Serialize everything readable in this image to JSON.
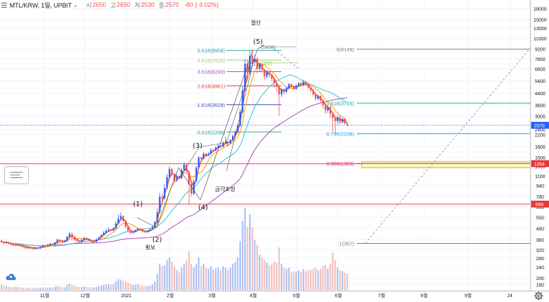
{
  "header": {
    "symbol": "MTL/KRW, 1일, UPBIT",
    "open_label": "시",
    "open": "2650",
    "high_label": "고",
    "high": "2650",
    "low_label": "저",
    "low": "2530",
    "close_label": "종",
    "close": "2570",
    "change": "-80 (-3.02%)"
  },
  "icons": {
    "menu": "menu-icon",
    "settings": "gear-icon",
    "tool": "cloud-icon"
  },
  "colors": {
    "up": "#2962ff",
    "down": "#ef5350",
    "fib_56": "#26a69a",
    "fib_46": "#9ccc65",
    "fib_36": "#ab47bc",
    "fib_26": "#e53935",
    "fib_16": "#3f51b5",
    "fib_06": "#26a69a",
    "red_line": "#e53935",
    "price_tag": "#2962ff"
  },
  "chart_data": {
    "type": "candlestick",
    "y_scale": "log",
    "ylim": [
      165,
      19000
    ],
    "x_tick_labels": [
      "11월",
      "12월",
      "2021",
      "2월",
      "3월",
      "4월",
      "5월",
      "6월",
      "7월",
      "8월",
      "9월",
      "24"
    ],
    "y_tick_labels": [
      18000,
      15000,
      13000,
      11000,
      9200,
      7800,
      6600,
      5400,
      4400,
      3600,
      3000,
      2400,
      2200,
      1800,
      1500,
      1300,
      1100,
      940,
      780,
      660,
      550,
      460,
      380,
      320,
      280,
      240,
      200,
      180
    ],
    "last_price": 2570,
    "horizontal_levels": [
      {
        "price": 1354,
        "label": "1354"
      },
      {
        "price": 689,
        "label": "689"
      }
    ],
    "fib_extension": [
      {
        "ratio": "5.618",
        "price": 8958
      },
      {
        "ratio": "4.618",
        "price": 7626
      },
      {
        "ratio": "3.618",
        "price": 6293
      },
      {
        "ratio": "2.618",
        "price": 4961
      },
      {
        "ratio": "1.618",
        "price": 3628
      },
      {
        "ratio": "0.618",
        "price": 2296
      }
    ],
    "fib_retracement": [
      {
        "ratio": "0",
        "price": 9149
      },
      {
        "ratio": "0.618",
        "price": 3716
      },
      {
        "ratio": "0.786",
        "price": 2238
      },
      {
        "ratio": "0.886",
        "price": 1359
      },
      {
        "ratio": "1",
        "price": 357
      }
    ],
    "top_label": "(5958)",
    "yellow_label": "(7282)",
    "annotations": [
      {
        "text": "절단"
      },
      {
        "text": "(5)"
      },
      {
        "text": "(3)"
      },
      {
        "text": "(1)"
      },
      {
        "text": "(2)"
      },
      {
        "text": "(4)"
      },
      {
        "text": "횡보"
      },
      {
        "text": "급각조정"
      }
    ],
    "candles": [
      [
        375,
        368,
        380,
        360,
        100
      ],
      [
        367,
        360,
        372,
        350,
        80
      ],
      [
        360,
        365,
        371,
        355,
        70
      ],
      [
        365,
        355,
        368,
        350,
        60
      ],
      [
        355,
        350,
        360,
        343,
        55
      ],
      [
        350,
        346,
        356,
        340,
        50
      ],
      [
        346,
        352,
        357,
        341,
        60
      ],
      [
        352,
        345,
        356,
        338,
        50
      ],
      [
        345,
        340,
        349,
        334,
        45
      ],
      [
        340,
        338,
        345,
        332,
        40
      ],
      [
        338,
        330,
        342,
        324,
        45
      ],
      [
        330,
        334,
        340,
        326,
        38
      ],
      [
        334,
        331,
        339,
        325,
        35
      ],
      [
        331,
        326,
        335,
        320,
        40
      ],
      [
        326,
        333,
        338,
        322,
        38
      ],
      [
        333,
        329,
        337,
        324,
        36
      ],
      [
        329,
        337,
        342,
        326,
        40
      ],
      [
        337,
        346,
        352,
        333,
        45
      ],
      [
        346,
        341,
        351,
        336,
        40
      ],
      [
        341,
        349,
        354,
        338,
        45
      ],
      [
        349,
        355,
        362,
        345,
        50
      ],
      [
        355,
        350,
        360,
        344,
        45
      ],
      [
        350,
        362,
        368,
        348,
        55
      ],
      [
        362,
        380,
        388,
        358,
        70
      ],
      [
        380,
        372,
        386,
        366,
        60
      ],
      [
        372,
        366,
        376,
        360,
        50
      ],
      [
        366,
        374,
        380,
        362,
        50
      ],
      [
        374,
        398,
        408,
        370,
        90
      ],
      [
        398,
        420,
        432,
        392,
        110
      ],
      [
        420,
        395,
        428,
        388,
        90
      ],
      [
        395,
        380,
        400,
        372,
        70
      ],
      [
        380,
        372,
        384,
        366,
        60
      ],
      [
        372,
        366,
        375,
        360,
        50
      ],
      [
        366,
        378,
        384,
        362,
        55
      ],
      [
        378,
        392,
        398,
        374,
        60
      ],
      [
        392,
        385,
        396,
        378,
        55
      ],
      [
        385,
        374,
        388,
        368,
        50
      ],
      [
        374,
        365,
        378,
        358,
        50
      ],
      [
        365,
        368,
        374,
        360,
        45
      ],
      [
        368,
        382,
        388,
        364,
        55
      ],
      [
        382,
        395,
        402,
        378,
        65
      ],
      [
        395,
        410,
        420,
        390,
        75
      ],
      [
        410,
        428,
        440,
        405,
        85
      ],
      [
        428,
        440,
        455,
        420,
        95
      ],
      [
        440,
        450,
        470,
        432,
        100
      ],
      [
        450,
        445,
        458,
        436,
        90
      ],
      [
        445,
        460,
        472,
        440,
        100
      ],
      [
        460,
        498,
        520,
        452,
        140
      ],
      [
        498,
        540,
        580,
        490,
        180
      ],
      [
        540,
        565,
        600,
        528,
        170
      ],
      [
        565,
        520,
        575,
        508,
        150
      ],
      [
        520,
        470,
        528,
        460,
        140
      ],
      [
        470,
        440,
        478,
        432,
        120
      ],
      [
        440,
        425,
        446,
        416,
        100
      ],
      [
        425,
        432,
        440,
        420,
        85
      ],
      [
        432,
        446,
        452,
        428,
        90
      ],
      [
        446,
        458,
        466,
        440,
        95
      ],
      [
        458,
        448,
        462,
        440,
        85
      ],
      [
        448,
        436,
        452,
        430,
        75
      ],
      [
        436,
        430,
        440,
        423,
        70
      ],
      [
        430,
        440,
        446,
        426,
        70
      ],
      [
        440,
        452,
        458,
        436,
        75
      ],
      [
        452,
        470,
        480,
        448,
        90
      ],
      [
        470,
        510,
        525,
        462,
        140
      ],
      [
        510,
        600,
        640,
        500,
        260
      ],
      [
        600,
        780,
        830,
        590,
        420
      ],
      [
        780,
        760,
        820,
        700,
        380
      ],
      [
        760,
        900,
        960,
        740,
        400
      ],
      [
        900,
        1080,
        1140,
        880,
        480
      ],
      [
        1080,
        1240,
        1290,
        1050,
        520
      ],
      [
        1240,
        1140,
        1260,
        1100,
        450
      ],
      [
        1140,
        1020,
        1160,
        990,
        380
      ],
      [
        1020,
        1100,
        1130,
        1000,
        320
      ],
      [
        1100,
        1060,
        1120,
        1030,
        280
      ],
      [
        1060,
        1220,
        1260,
        1050,
        360
      ],
      [
        1220,
        1330,
        1380,
        1200,
        420
      ],
      [
        1330,
        1190,
        1350,
        1140,
        480
      ],
      [
        1190,
        960,
        1200,
        680,
        620
      ],
      [
        960,
        820,
        980,
        780,
        420
      ],
      [
        820,
        1010,
        1040,
        800,
        360
      ],
      [
        1010,
        1270,
        1300,
        1000,
        420
      ],
      [
        1270,
        1500,
        1540,
        1250,
        520
      ],
      [
        1500,
        1470,
        1520,
        1440,
        380
      ],
      [
        1470,
        1600,
        1650,
        1450,
        420
      ],
      [
        1600,
        1550,
        1620,
        1520,
        360
      ],
      [
        1550,
        1600,
        1640,
        1530,
        340
      ],
      [
        1600,
        1700,
        1760,
        1580,
        380
      ],
      [
        1700,
        1690,
        1740,
        1650,
        330
      ],
      [
        1690,
        1770,
        1820,
        1670,
        350
      ],
      [
        1770,
        1820,
        1880,
        1740,
        360
      ],
      [
        1820,
        1800,
        1860,
        1760,
        320
      ],
      [
        1800,
        1920,
        1980,
        1780,
        380
      ],
      [
        1920,
        1950,
        2000,
        1880,
        360
      ],
      [
        1950,
        1900,
        1970,
        1850,
        320
      ],
      [
        1900,
        2000,
        2050,
        1880,
        360
      ],
      [
        2000,
        2150,
        2200,
        1970,
        420
      ],
      [
        2150,
        2300,
        2380,
        2100,
        450
      ],
      [
        2300,
        2550,
        2650,
        2250,
        520
      ],
      [
        2550,
        3200,
        3400,
        2500,
        780
      ],
      [
        3200,
        4600,
        4900,
        3150,
        1100
      ],
      [
        4600,
        7200,
        7800,
        4500,
        1300
      ],
      [
        7200,
        6200,
        7700,
        5600,
        1000
      ],
      [
        6200,
        8200,
        8900,
        6000,
        1200
      ],
      [
        8200,
        7400,
        9150,
        7000,
        1000
      ],
      [
        7400,
        7800,
        8300,
        6900,
        800
      ],
      [
        7800,
        6600,
        8000,
        6100,
        720
      ],
      [
        6600,
        7100,
        7300,
        6300,
        560
      ],
      [
        7100,
        6500,
        7250,
        6200,
        520
      ],
      [
        6500,
        5800,
        6600,
        5500,
        480
      ],
      [
        5800,
        6300,
        6500,
        5600,
        440
      ],
      [
        6300,
        6000,
        6400,
        5700,
        400
      ],
      [
        6000,
        5600,
        6100,
        5300,
        420
      ],
      [
        5600,
        5200,
        5700,
        4800,
        460
      ],
      [
        5200,
        4900,
        5300,
        4500,
        440
      ],
      [
        4900,
        4300,
        5000,
        3000,
        680
      ],
      [
        4300,
        4700,
        4800,
        4100,
        420
      ],
      [
        4700,
        4500,
        4800,
        4300,
        360
      ],
      [
        4500,
        4800,
        4950,
        4400,
        340
      ],
      [
        4800,
        5100,
        5200,
        4700,
        360
      ],
      [
        5100,
        4900,
        5200,
        4800,
        300
      ],
      [
        4900,
        4700,
        5000,
        4600,
        280
      ],
      [
        4700,
        5000,
        5100,
        4650,
        300
      ],
      [
        5000,
        5200,
        5300,
        4900,
        320
      ],
      [
        5200,
        5000,
        5350,
        4900,
        290
      ],
      [
        5000,
        5300,
        5500,
        4950,
        340
      ],
      [
        5300,
        5100,
        5400,
        4950,
        300
      ],
      [
        5100,
        4800,
        5200,
        4700,
        320
      ],
      [
        4800,
        4600,
        4900,
        4450,
        330
      ],
      [
        4600,
        4300,
        4700,
        4150,
        340
      ],
      [
        4300,
        4000,
        4400,
        3850,
        360
      ],
      [
        4000,
        4200,
        4300,
        3900,
        320
      ],
      [
        4200,
        3900,
        4250,
        3700,
        340
      ],
      [
        3900,
        3600,
        3950,
        3400,
        380
      ],
      [
        3600,
        3300,
        3700,
        3100,
        400
      ],
      [
        3300,
        3500,
        3600,
        3150,
        340
      ],
      [
        3500,
        3100,
        3550,
        2900,
        420
      ],
      [
        3100,
        2900,
        3150,
        2300,
        600
      ],
      [
        2900,
        2750,
        3000,
        2250,
        480
      ],
      [
        2750,
        2950,
        3050,
        2600,
        360
      ],
      [
        2950,
        2700,
        3000,
        2600,
        320
      ],
      [
        2700,
        2850,
        2900,
        2650,
        300
      ],
      [
        2850,
        2650,
        2900,
        2600,
        280
      ],
      [
        2650,
        2570,
        2650,
        2530,
        260
      ]
    ]
  }
}
